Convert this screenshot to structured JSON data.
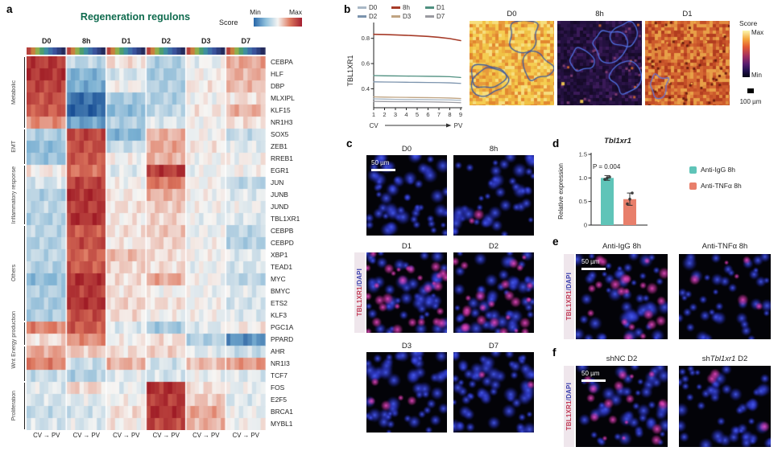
{
  "panel_a": {
    "label": "a",
    "title": "Regeneration regulons",
    "colorbar": {
      "label": "Score",
      "min": "Min",
      "max": "Max"
    },
    "cv_pv": "CV → PV"
  },
  "panel_b": {
    "label": "b",
    "images": [
      {
        "title": "D0"
      },
      {
        "title": "8h"
      },
      {
        "title": "D1"
      }
    ],
    "colorbar": {
      "label": "Score",
      "max": "Max",
      "min": "Min"
    },
    "scalebar": "100 µm"
  },
  "panel_c": {
    "label": "c",
    "images": [
      {
        "title": "D0"
      },
      {
        "title": "8h"
      },
      {
        "title": "D1"
      },
      {
        "title": "D2"
      },
      {
        "title": "D3"
      },
      {
        "title": "D7"
      }
    ],
    "side_label": {
      "gene": "TBL1XR1",
      "stain": "/DAPI"
    },
    "scalebar": "50 µm"
  },
  "panel_d": {
    "label": "d"
  },
  "panel_e": {
    "label": "e",
    "images": [
      {
        "title": "Anti-IgG 8h"
      },
      {
        "title": "Anti-TNFα 8h"
      }
    ],
    "side_label": {
      "gene": "TBL1XR1",
      "stain": "/DAPI"
    },
    "scalebar": "50 µm"
  },
  "panel_f": {
    "label": "f",
    "images": [
      {
        "title_parts": [
          {
            "text": "shNC D2"
          }
        ]
      },
      {
        "title_parts": [
          {
            "text": "sh"
          },
          {
            "text": "Tbl1xr1",
            "italic": true
          },
          {
            "text": " D2"
          }
        ]
      }
    ],
    "side_label": {
      "gene": "TBL1XR1",
      "stain": "/DAPI"
    },
    "scalebar": "50 µm"
  },
  "chart_data": [
    {
      "type": "heatmap",
      "title": "Regeneration regulons",
      "colormap": "blue-white-red diverging, Score Min→Max",
      "column_groups": [
        "D0",
        "8h",
        "D1",
        "D2",
        "D3",
        "D7"
      ],
      "cols_per_group": 9,
      "within_group_axis": "CV → PV",
      "zone_colors": [
        "#b5413c",
        "#c97f3e",
        "#8faf4e",
        "#4e9e6e",
        "#3f8fa0",
        "#3f6fa8",
        "#3a539c",
        "#2e3f7e",
        "#232a5c"
      ],
      "row_groups": [
        {
          "name": "Metabolic",
          "genes": [
            "CEBPA",
            "HLF",
            "DBP",
            "MLXIPL",
            "KLF15",
            "NR1H3"
          ]
        },
        {
          "name": "EMT",
          "genes": [
            "SOX5",
            "ZEB1",
            "RREB1"
          ]
        },
        {
          "name": "Inflammatory response",
          "genes": [
            "EGR1",
            "JUN",
            "JUNB",
            "JUND",
            "TBL1XR1"
          ]
        },
        {
          "name": "Others",
          "genes": [
            "CEBPB",
            "CEBPD",
            "XBP1",
            "TEAD1",
            "MYC",
            "BMYC",
            "ETS2",
            "KLF3"
          ]
        },
        {
          "name": "Energy production",
          "genes": [
            "PGC1A",
            "PPARD"
          ]
        },
        {
          "name": "Wnt",
          "genes": [
            "AHR",
            "NR1I3",
            "TCF7"
          ]
        },
        {
          "name": "Proliferation",
          "genes": [
            "FOS",
            "E2F5",
            "BRCA1",
            "MYBL1"
          ]
        }
      ],
      "values": {
        "CEBPA": [
          0.85,
          -0.25,
          0.1,
          -0.3,
          -0.05,
          0.35
        ],
        "HLF": [
          0.9,
          -0.5,
          -0.15,
          -0.35,
          0.0,
          0.3
        ],
        "DBP": [
          0.8,
          -0.55,
          0.0,
          -0.3,
          0.05,
          0.25
        ],
        "MLXIPL": [
          0.75,
          -0.85,
          -0.35,
          -0.3,
          0.0,
          0.1
        ],
        "KLF15": [
          0.7,
          -0.9,
          -0.45,
          -0.25,
          0.05,
          0.3
        ],
        "NR1H3": [
          0.45,
          -0.6,
          -0.3,
          -0.1,
          0.0,
          0.1
        ],
        "SOX5": [
          -0.3,
          0.8,
          -0.5,
          0.3,
          0.0,
          -0.2
        ],
        "ZEB1": [
          -0.45,
          0.75,
          -0.2,
          0.35,
          0.05,
          -0.1
        ],
        "RREB1": [
          -0.4,
          0.7,
          0.0,
          0.3,
          0.0,
          0.0
        ],
        "EGR1": [
          0.05,
          0.6,
          -0.1,
          0.85,
          -0.05,
          0.0
        ],
        "JUN": [
          -0.15,
          0.8,
          0.0,
          0.55,
          0.0,
          -0.25
        ],
        "JUNB": [
          -0.3,
          0.9,
          0.05,
          0.3,
          0.0,
          -0.1
        ],
        "JUND": [
          -0.25,
          0.85,
          0.1,
          0.2,
          0.0,
          -0.05
        ],
        "TBL1XR1": [
          -0.3,
          0.9,
          0.05,
          0.15,
          -0.05,
          -0.1
        ],
        "CEBPB": [
          -0.25,
          0.7,
          0.1,
          0.2,
          -0.05,
          -0.25
        ],
        "CEBPD": [
          -0.3,
          0.75,
          0.05,
          0.15,
          0.0,
          -0.3
        ],
        "XBP1": [
          -0.25,
          0.65,
          0.25,
          0.1,
          0.0,
          -0.1
        ],
        "TEAD1": [
          -0.3,
          0.7,
          0.15,
          0.1,
          -0.05,
          -0.15
        ],
        "MYC": [
          -0.45,
          0.9,
          0.1,
          0.35,
          0.0,
          -0.25
        ],
        "BMYC": [
          -0.3,
          0.85,
          0.1,
          0.0,
          -0.05,
          -0.1
        ],
        "ETS2": [
          -0.35,
          0.9,
          0.15,
          0.1,
          0.0,
          -0.15
        ],
        "KLF3": [
          -0.3,
          0.75,
          0.1,
          0.0,
          0.0,
          -0.1
        ],
        "PGC1A": [
          0.5,
          0.7,
          -0.1,
          -0.35,
          -0.1,
          0.05
        ],
        "PPARD": [
          0.1,
          0.45,
          0.0,
          0.1,
          -0.3,
          -0.7
        ],
        "AHR": [
          0.35,
          0.2,
          0.1,
          0.15,
          -0.1,
          -0.2
        ],
        "NR1I3": [
          0.5,
          -0.2,
          0.3,
          -0.15,
          0.25,
          0.4
        ],
        "TCF7": [
          -0.2,
          -0.3,
          -0.1,
          -0.15,
          -0.05,
          -0.1
        ],
        "FOS": [
          -0.1,
          0.15,
          -0.05,
          0.9,
          0.1,
          -0.05
        ],
        "E2F5": [
          -0.15,
          -0.1,
          0.0,
          0.85,
          0.2,
          -0.1
        ],
        "BRCA1": [
          -0.2,
          -0.15,
          0.1,
          0.9,
          0.35,
          -0.05
        ],
        "MYBL1": [
          -0.15,
          -0.1,
          0.05,
          0.8,
          0.3,
          0.0
        ]
      }
    },
    {
      "type": "line",
      "ylabel": "TBL1XR1",
      "x": [
        1,
        2,
        3,
        4,
        5,
        6,
        7,
        8,
        9
      ],
      "yticks": [
        0.4,
        0.6,
        0.8
      ],
      "ylim": [
        0.25,
        0.9
      ],
      "x_annotation": {
        "left": "CV",
        "right": "PV"
      },
      "legend_position": "top",
      "series": [
        {
          "name": "D0",
          "color": "#a9b8c6",
          "values": [
            0.32,
            0.318,
            0.316,
            0.315,
            0.315,
            0.314,
            0.313,
            0.312,
            0.308
          ]
        },
        {
          "name": "8h",
          "color": "#a63b28",
          "values": [
            0.832,
            0.83,
            0.827,
            0.824,
            0.82,
            0.815,
            0.808,
            0.798,
            0.782
          ]
        },
        {
          "name": "D1",
          "color": "#4f9080",
          "values": [
            0.505,
            0.503,
            0.502,
            0.501,
            0.5,
            0.499,
            0.498,
            0.496,
            0.49
          ]
        },
        {
          "name": "D2",
          "color": "#7b93ad",
          "values": [
            0.455,
            0.454,
            0.453,
            0.452,
            0.451,
            0.45,
            0.449,
            0.447,
            0.443
          ]
        },
        {
          "name": "D3",
          "color": "#c0a482",
          "values": [
            0.336,
            0.334,
            0.333,
            0.332,
            0.331,
            0.33,
            0.329,
            0.327,
            0.323
          ]
        },
        {
          "name": "D7",
          "color": "#9a9aa0",
          "values": [
            0.3,
            0.299,
            0.298,
            0.298,
            0.297,
            0.296,
            0.295,
            0.293,
            0.29
          ]
        }
      ]
    },
    {
      "type": "bar",
      "title": "Tbl1xr1",
      "ylabel": "Relative expression",
      "ylim": [
        0,
        1.5
      ],
      "yticks": [
        0,
        0.5,
        1.0,
        1.5
      ],
      "p_value": "P = 0.004",
      "categories": [
        "Anti-IgG 8h",
        "Anti-TNFα 8h"
      ],
      "values": [
        1.0,
        0.55
      ],
      "errors": [
        0.05,
        0.13
      ],
      "points": [
        [
          0.97,
          1.0,
          1.02
        ],
        [
          0.45,
          0.55,
          0.68
        ]
      ],
      "colors": [
        "#5fc4b8",
        "#e87f6b"
      ]
    }
  ]
}
